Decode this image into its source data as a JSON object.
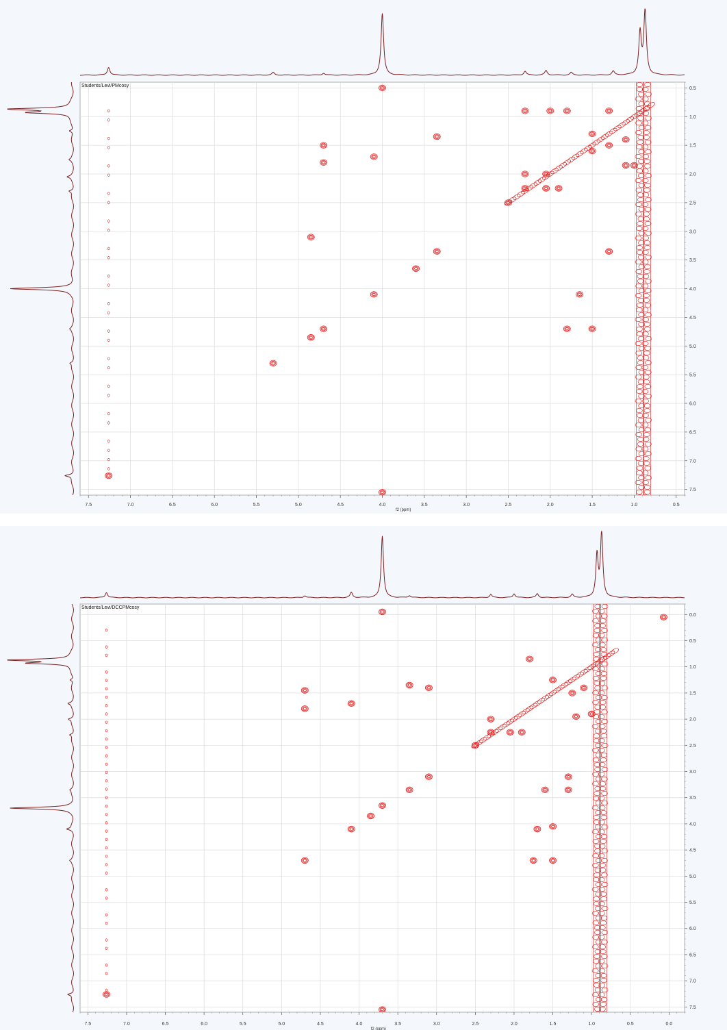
{
  "chart_data": [
    {
      "type": "contour",
      "subtype": "2D COSY NMR spectrum",
      "title": "Students/Levi/PMcosy",
      "xlabel": "f2 (ppm)",
      "ylabel": "",
      "xlim": [
        7.6,
        0.4
      ],
      "ylim": [
        0.4,
        7.6
      ],
      "x_ticks": [
        "7.5",
        "7.0",
        "6.5",
        "6.0",
        "5.5",
        "5.0",
        "4.5",
        "4.0",
        "3.5",
        "3.0",
        "2.5",
        "2.0",
        "1.5",
        "1.0",
        "0.5"
      ],
      "y_ticks": [
        "0.5",
        "1.0",
        "1.5",
        "2.0",
        "2.5",
        "3.0",
        "3.5",
        "4.0",
        "4.5",
        "5.0",
        "5.5",
        "6.0",
        "6.5",
        "7.0",
        "7.5"
      ],
      "grid": true,
      "contour_color": "#e31c1c",
      "trace_color": "#7a1f1f",
      "projection_peaks": [
        {
          "ppm": 7.26,
          "height": 0.12
        },
        {
          "ppm": 5.3,
          "height": 0.04
        },
        {
          "ppm": 4.7,
          "height": 0.03
        },
        {
          "ppm": 4.0,
          "height": 0.95
        },
        {
          "ppm": 2.3,
          "height": 0.06
        },
        {
          "ppm": 2.05,
          "height": 0.07
        },
        {
          "ppm": 1.75,
          "height": 0.04
        },
        {
          "ppm": 1.25,
          "height": 0.06
        },
        {
          "ppm": 0.93,
          "height": 0.65
        },
        {
          "ppm": 0.87,
          "height": 1.0
        }
      ],
      "cross_peaks": [
        {
          "x": 4.7,
          "y": 1.5
        },
        {
          "x": 4.7,
          "y": 1.8
        },
        {
          "x": 4.1,
          "y": 1.7
        },
        {
          "x": 3.35,
          "y": 1.35
        },
        {
          "x": 4.85,
          "y": 3.1
        },
        {
          "x": 3.35,
          "y": 3.35
        },
        {
          "x": 3.6,
          "y": 3.65
        },
        {
          "x": 4.1,
          "y": 4.1
        },
        {
          "x": 1.65,
          "y": 4.1
        },
        {
          "x": 4.7,
          "y": 4.7
        },
        {
          "x": 4.85,
          "y": 4.85
        },
        {
          "x": 1.8,
          "y": 4.7
        },
        {
          "x": 1.5,
          "y": 4.7
        },
        {
          "x": 5.3,
          "y": 5.3
        },
        {
          "x": 1.3,
          "y": 3.35
        },
        {
          "x": 7.26,
          "y": 7.26
        },
        {
          "x": 2.5,
          "y": 2.5
        },
        {
          "x": 2.3,
          "y": 2.0
        },
        {
          "x": 2.3,
          "y": 2.25
        },
        {
          "x": 2.05,
          "y": 2.0
        },
        {
          "x": 2.05,
          "y": 2.25
        },
        {
          "x": 1.9,
          "y": 2.25
        },
        {
          "x": 2.0,
          "y": 0.9
        },
        {
          "x": 1.8,
          "y": 0.9
        },
        {
          "x": 1.3,
          "y": 0.9
        },
        {
          "x": 1.5,
          "y": 1.3
        },
        {
          "x": 1.3,
          "y": 1.5
        },
        {
          "x": 1.1,
          "y": 1.4
        },
        {
          "x": 1.5,
          "y": 1.6
        },
        {
          "x": 1.1,
          "y": 1.85
        },
        {
          "x": 1.0,
          "y": 1.85
        },
        {
          "x": 2.3,
          "y": 0.9
        },
        {
          "x": 4.0,
          "y": 0.5
        },
        {
          "x": 4.0,
          "y": 7.55
        }
      ],
      "diagonal_range": [
        0.8,
        2.5
      ],
      "vertical_bands": [
        {
          "ppm": 0.93
        },
        {
          "ppm": 0.85
        }
      ]
    },
    {
      "type": "contour",
      "subtype": "2D COSY NMR spectrum",
      "title": "Students/Levi/DCCPMcosy",
      "xlabel": "f2 (ppm)",
      "ylabel": "",
      "xlim": [
        7.6,
        -0.2
      ],
      "ylim": [
        -0.2,
        7.6
      ],
      "x_ticks": [
        "7.5",
        "7.0",
        "6.5",
        "6.0",
        "5.5",
        "5.0",
        "4.5",
        "4.0",
        "3.5",
        "3.0",
        "2.5",
        "2.0",
        "1.5",
        "1.0",
        "0.5",
        "0.0"
      ],
      "y_ticks": [
        "0.0",
        "0.5",
        "1.0",
        "1.5",
        "2.0",
        "2.5",
        "3.0",
        "3.5",
        "4.0",
        "4.5",
        "5.0",
        "5.5",
        "6.0",
        "6.5",
        "7.0",
        "7.5"
      ],
      "grid": true,
      "contour_color": "#e31c1c",
      "trace_color": "#7a1f1f",
      "projection_peaks": [
        {
          "ppm": 7.26,
          "height": 0.08
        },
        {
          "ppm": 4.7,
          "height": 0.03
        },
        {
          "ppm": 4.1,
          "height": 0.08
        },
        {
          "ppm": 3.7,
          "height": 0.95
        },
        {
          "ppm": 3.35,
          "height": 0.03
        },
        {
          "ppm": 2.3,
          "height": 0.05
        },
        {
          "ppm": 2.0,
          "height": 0.06
        },
        {
          "ppm": 1.7,
          "height": 0.06
        },
        {
          "ppm": 1.25,
          "height": 0.05
        },
        {
          "ppm": 0.93,
          "height": 0.65
        },
        {
          "ppm": 0.87,
          "height": 1.0
        }
      ],
      "cross_peaks": [
        {
          "x": 0.07,
          "y": 0.05
        },
        {
          "x": 4.7,
          "y": 1.45
        },
        {
          "x": 4.7,
          "y": 1.8
        },
        {
          "x": 4.1,
          "y": 1.7
        },
        {
          "x": 3.35,
          "y": 1.35
        },
        {
          "x": 3.1,
          "y": 1.4
        },
        {
          "x": 3.35,
          "y": 3.35
        },
        {
          "x": 3.1,
          "y": 3.1
        },
        {
          "x": 3.7,
          "y": 3.65
        },
        {
          "x": 3.85,
          "y": 3.85
        },
        {
          "x": 4.1,
          "y": 4.1
        },
        {
          "x": 1.7,
          "y": 4.1
        },
        {
          "x": 1.5,
          "y": 4.05
        },
        {
          "x": 4.7,
          "y": 4.7
        },
        {
          "x": 1.75,
          "y": 4.7
        },
        {
          "x": 1.5,
          "y": 4.7
        },
        {
          "x": 1.6,
          "y": 3.35
        },
        {
          "x": 1.3,
          "y": 3.35
        },
        {
          "x": 1.3,
          "y": 3.1
        },
        {
          "x": 7.26,
          "y": 7.26
        },
        {
          "x": 2.5,
          "y": 2.5
        },
        {
          "x": 2.3,
          "y": 2.0
        },
        {
          "x": 2.3,
          "y": 2.25
        },
        {
          "x": 2.05,
          "y": 2.25
        },
        {
          "x": 1.9,
          "y": 2.25
        },
        {
          "x": 1.8,
          "y": 0.85
        },
        {
          "x": 1.5,
          "y": 1.25
        },
        {
          "x": 1.25,
          "y": 1.5
        },
        {
          "x": 1.1,
          "y": 1.4
        },
        {
          "x": 1.2,
          "y": 1.95
        },
        {
          "x": 1.0,
          "y": 1.9
        },
        {
          "x": 3.7,
          "y": -0.05
        },
        {
          "x": 3.7,
          "y": 7.55
        }
      ],
      "diagonal_range": [
        0.7,
        2.5
      ],
      "vertical_bands": [
        {
          "ppm": 0.93
        },
        {
          "ppm": 0.85
        }
      ]
    }
  ]
}
